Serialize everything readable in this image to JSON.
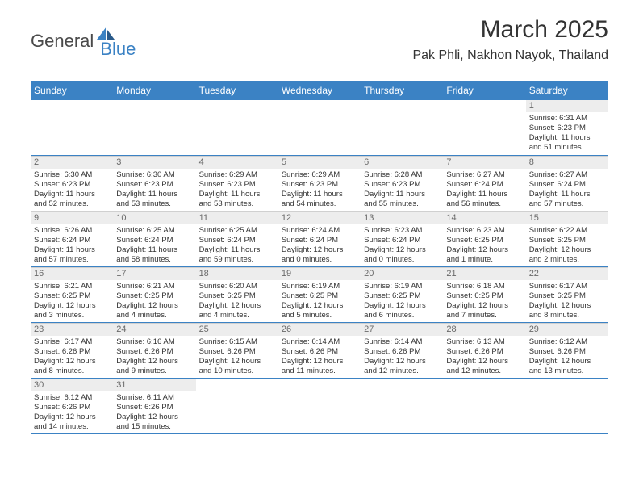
{
  "logo": {
    "part1": "General",
    "part2": "Blue"
  },
  "title": "March 2025",
  "location": "Pak Phli, Nakhon Nayok, Thailand",
  "colors": {
    "header_bg": "#3b82c4",
    "daynum_bg": "#ededed",
    "row_divider": "#3b82c4",
    "text": "#333333"
  },
  "days_of_week": [
    "Sunday",
    "Monday",
    "Tuesday",
    "Wednesday",
    "Thursday",
    "Friday",
    "Saturday"
  ],
  "weeks": [
    [
      {
        "n": "",
        "sr": "",
        "ss": "",
        "dl": "",
        "empty": true
      },
      {
        "n": "",
        "sr": "",
        "ss": "",
        "dl": "",
        "empty": true
      },
      {
        "n": "",
        "sr": "",
        "ss": "",
        "dl": "",
        "empty": true
      },
      {
        "n": "",
        "sr": "",
        "ss": "",
        "dl": "",
        "empty": true
      },
      {
        "n": "",
        "sr": "",
        "ss": "",
        "dl": "",
        "empty": true
      },
      {
        "n": "",
        "sr": "",
        "ss": "",
        "dl": "",
        "empty": true
      },
      {
        "n": "1",
        "sr": "Sunrise: 6:31 AM",
        "ss": "Sunset: 6:23 PM",
        "dl": "Daylight: 11 hours and 51 minutes."
      }
    ],
    [
      {
        "n": "2",
        "sr": "Sunrise: 6:30 AM",
        "ss": "Sunset: 6:23 PM",
        "dl": "Daylight: 11 hours and 52 minutes."
      },
      {
        "n": "3",
        "sr": "Sunrise: 6:30 AM",
        "ss": "Sunset: 6:23 PM",
        "dl": "Daylight: 11 hours and 53 minutes."
      },
      {
        "n": "4",
        "sr": "Sunrise: 6:29 AM",
        "ss": "Sunset: 6:23 PM",
        "dl": "Daylight: 11 hours and 53 minutes."
      },
      {
        "n": "5",
        "sr": "Sunrise: 6:29 AM",
        "ss": "Sunset: 6:23 PM",
        "dl": "Daylight: 11 hours and 54 minutes."
      },
      {
        "n": "6",
        "sr": "Sunrise: 6:28 AM",
        "ss": "Sunset: 6:23 PM",
        "dl": "Daylight: 11 hours and 55 minutes."
      },
      {
        "n": "7",
        "sr": "Sunrise: 6:27 AM",
        "ss": "Sunset: 6:24 PM",
        "dl": "Daylight: 11 hours and 56 minutes."
      },
      {
        "n": "8",
        "sr": "Sunrise: 6:27 AM",
        "ss": "Sunset: 6:24 PM",
        "dl": "Daylight: 11 hours and 57 minutes."
      }
    ],
    [
      {
        "n": "9",
        "sr": "Sunrise: 6:26 AM",
        "ss": "Sunset: 6:24 PM",
        "dl": "Daylight: 11 hours and 57 minutes."
      },
      {
        "n": "10",
        "sr": "Sunrise: 6:25 AM",
        "ss": "Sunset: 6:24 PM",
        "dl": "Daylight: 11 hours and 58 minutes."
      },
      {
        "n": "11",
        "sr": "Sunrise: 6:25 AM",
        "ss": "Sunset: 6:24 PM",
        "dl": "Daylight: 11 hours and 59 minutes."
      },
      {
        "n": "12",
        "sr": "Sunrise: 6:24 AM",
        "ss": "Sunset: 6:24 PM",
        "dl": "Daylight: 12 hours and 0 minutes."
      },
      {
        "n": "13",
        "sr": "Sunrise: 6:23 AM",
        "ss": "Sunset: 6:24 PM",
        "dl": "Daylight: 12 hours and 0 minutes."
      },
      {
        "n": "14",
        "sr": "Sunrise: 6:23 AM",
        "ss": "Sunset: 6:25 PM",
        "dl": "Daylight: 12 hours and 1 minute."
      },
      {
        "n": "15",
        "sr": "Sunrise: 6:22 AM",
        "ss": "Sunset: 6:25 PM",
        "dl": "Daylight: 12 hours and 2 minutes."
      }
    ],
    [
      {
        "n": "16",
        "sr": "Sunrise: 6:21 AM",
        "ss": "Sunset: 6:25 PM",
        "dl": "Daylight: 12 hours and 3 minutes."
      },
      {
        "n": "17",
        "sr": "Sunrise: 6:21 AM",
        "ss": "Sunset: 6:25 PM",
        "dl": "Daylight: 12 hours and 4 minutes."
      },
      {
        "n": "18",
        "sr": "Sunrise: 6:20 AM",
        "ss": "Sunset: 6:25 PM",
        "dl": "Daylight: 12 hours and 4 minutes."
      },
      {
        "n": "19",
        "sr": "Sunrise: 6:19 AM",
        "ss": "Sunset: 6:25 PM",
        "dl": "Daylight: 12 hours and 5 minutes."
      },
      {
        "n": "20",
        "sr": "Sunrise: 6:19 AM",
        "ss": "Sunset: 6:25 PM",
        "dl": "Daylight: 12 hours and 6 minutes."
      },
      {
        "n": "21",
        "sr": "Sunrise: 6:18 AM",
        "ss": "Sunset: 6:25 PM",
        "dl": "Daylight: 12 hours and 7 minutes."
      },
      {
        "n": "22",
        "sr": "Sunrise: 6:17 AM",
        "ss": "Sunset: 6:25 PM",
        "dl": "Daylight: 12 hours and 8 minutes."
      }
    ],
    [
      {
        "n": "23",
        "sr": "Sunrise: 6:17 AM",
        "ss": "Sunset: 6:26 PM",
        "dl": "Daylight: 12 hours and 8 minutes."
      },
      {
        "n": "24",
        "sr": "Sunrise: 6:16 AM",
        "ss": "Sunset: 6:26 PM",
        "dl": "Daylight: 12 hours and 9 minutes."
      },
      {
        "n": "25",
        "sr": "Sunrise: 6:15 AM",
        "ss": "Sunset: 6:26 PM",
        "dl": "Daylight: 12 hours and 10 minutes."
      },
      {
        "n": "26",
        "sr": "Sunrise: 6:14 AM",
        "ss": "Sunset: 6:26 PM",
        "dl": "Daylight: 12 hours and 11 minutes."
      },
      {
        "n": "27",
        "sr": "Sunrise: 6:14 AM",
        "ss": "Sunset: 6:26 PM",
        "dl": "Daylight: 12 hours and 12 minutes."
      },
      {
        "n": "28",
        "sr": "Sunrise: 6:13 AM",
        "ss": "Sunset: 6:26 PM",
        "dl": "Daylight: 12 hours and 12 minutes."
      },
      {
        "n": "29",
        "sr": "Sunrise: 6:12 AM",
        "ss": "Sunset: 6:26 PM",
        "dl": "Daylight: 12 hours and 13 minutes."
      }
    ],
    [
      {
        "n": "30",
        "sr": "Sunrise: 6:12 AM",
        "ss": "Sunset: 6:26 PM",
        "dl": "Daylight: 12 hours and 14 minutes."
      },
      {
        "n": "31",
        "sr": "Sunrise: 6:11 AM",
        "ss": "Sunset: 6:26 PM",
        "dl": "Daylight: 12 hours and 15 minutes."
      },
      {
        "n": "",
        "sr": "",
        "ss": "",
        "dl": "",
        "empty": true
      },
      {
        "n": "",
        "sr": "",
        "ss": "",
        "dl": "",
        "empty": true
      },
      {
        "n": "",
        "sr": "",
        "ss": "",
        "dl": "",
        "empty": true
      },
      {
        "n": "",
        "sr": "",
        "ss": "",
        "dl": "",
        "empty": true
      },
      {
        "n": "",
        "sr": "",
        "ss": "",
        "dl": "",
        "empty": true
      }
    ]
  ]
}
